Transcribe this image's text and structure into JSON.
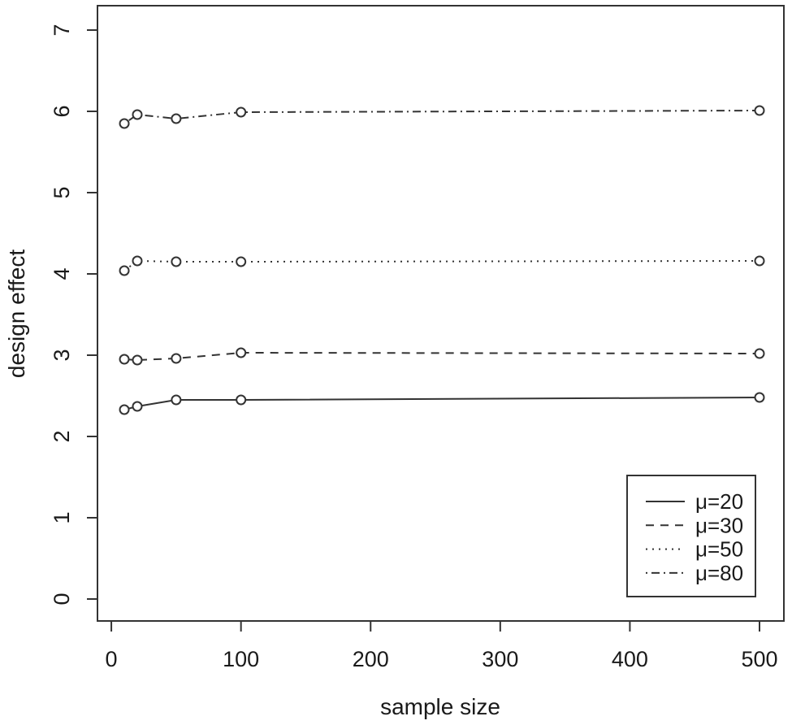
{
  "chart_data": {
    "type": "line",
    "title": "",
    "xlabel": "sample size",
    "ylabel": "design effect",
    "x": [
      10,
      20,
      50,
      100,
      500
    ],
    "series": [
      {
        "name": "μ=20",
        "linestyle": "solid",
        "marker": "open-circle",
        "values": [
          2.33,
          2.37,
          2.45,
          2.45,
          2.48
        ]
      },
      {
        "name": "μ=30",
        "linestyle": "dashed",
        "marker": "open-circle",
        "values": [
          2.95,
          2.94,
          2.96,
          3.03,
          3.02
        ]
      },
      {
        "name": "μ=50",
        "linestyle": "dotted",
        "marker": "open-circle",
        "values": [
          4.04,
          4.16,
          4.15,
          4.15,
          4.16
        ]
      },
      {
        "name": "μ=80",
        "linestyle": "dashdot",
        "marker": "open-circle",
        "values": [
          5.85,
          5.96,
          5.91,
          5.99,
          6.01
        ]
      }
    ],
    "xticks": [
      0,
      100,
      200,
      300,
      400,
      500
    ],
    "yticks": [
      0,
      1,
      2,
      3,
      4,
      5,
      6,
      7
    ],
    "xlim": [
      -10.7,
      518.8
    ],
    "ylim": [
      -0.27,
      7.3
    ],
    "grid": false,
    "legend": {
      "position": "bottom-right",
      "entries": [
        "μ=20",
        "μ=30",
        "μ=50",
        "μ=80"
      ]
    },
    "colors": {
      "line": "#333333",
      "marker_fill": "#ffffff",
      "background": "#ffffff",
      "text": "#1a1a1a"
    }
  }
}
